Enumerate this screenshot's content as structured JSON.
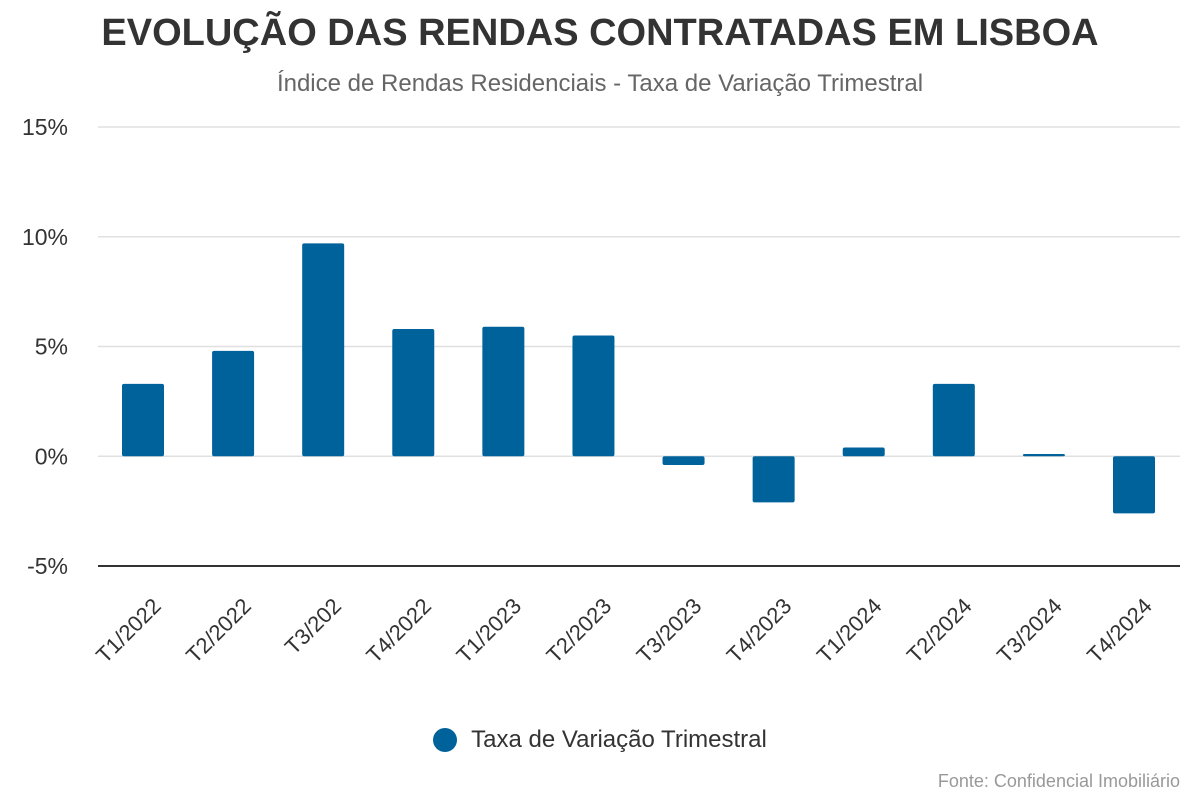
{
  "header": {
    "title": "EVOLUÇÃO DAS RENDAS CONTRATADAS EM LISBOA",
    "subtitle": "Índice de Rendas Residenciais - Taxa de Variação Trimestral"
  },
  "footer": {
    "source": "Fonte: Confidencial Imobiliário"
  },
  "chart_data": {
    "type": "bar",
    "categories": [
      "T1/2022",
      "T2/2022",
      "T3/202",
      "T4/2022",
      "T1/2023",
      "T2/2023",
      "T3/2023",
      "T4/2023",
      "T1/2024",
      "T2/2024",
      "T3/2024",
      "T4/2024"
    ],
    "series": [
      {
        "name": "Taxa de Variação Trimestral",
        "values": [
          3.3,
          4.8,
          9.7,
          5.8,
          5.9,
          5.5,
          -0.4,
          -2.1,
          0.4,
          3.3,
          0.1,
          -2.6
        ],
        "color": "#00629b"
      }
    ],
    "ylim": [
      -5,
      15
    ],
    "yticks": [
      -5,
      0,
      5,
      10,
      15
    ],
    "ytick_labels": [
      "-5%",
      "0%",
      "5%",
      "10%",
      "15%"
    ],
    "grid": true,
    "legend_position": "bottom-center",
    "colors": {
      "bar": "#00629b",
      "grid": "#e0e0e0",
      "axis": "#333333"
    }
  }
}
